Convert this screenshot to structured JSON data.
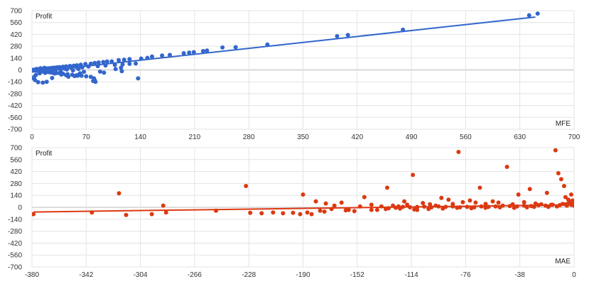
{
  "chart_data": [
    {
      "type": "scatter",
      "colors": {
        "points": "#3366cc",
        "trend": "#3366cc"
      },
      "xlabel": "MFE",
      "ylabel": "Profit",
      "xlim": [
        0,
        700
      ],
      "ylim": [
        -700,
        700
      ],
      "x_ticks": [
        "0",
        "70",
        "140",
        "210",
        "280",
        "350",
        "420",
        "490",
        "560",
        "630",
        "700"
      ],
      "y_ticks": [
        "700",
        "560",
        "420",
        "280",
        "140",
        "0",
        "-140",
        "-280",
        "-420",
        "-560",
        "-700"
      ],
      "grid": true,
      "trendline": [
        [
          0,
          -25
        ],
        [
          650,
          625
        ]
      ],
      "points": [
        [
          642,
          645
        ],
        [
          653,
          665
        ],
        [
          479,
          475
        ],
        [
          408,
          412
        ],
        [
          394,
          398
        ],
        [
          304,
          300
        ],
        [
          263,
          268
        ],
        [
          246,
          265
        ],
        [
          226,
          228
        ],
        [
          221,
          222
        ],
        [
          209,
          210
        ],
        [
          203,
          204
        ],
        [
          196,
          197
        ],
        [
          178,
          177
        ],
        [
          168,
          170
        ],
        [
          155,
          158
        ],
        [
          149,
          142
        ],
        [
          141,
          134
        ],
        [
          126,
          128
        ],
        [
          119,
          121
        ],
        [
          112,
          115
        ],
        [
          103,
          101
        ],
        [
          97,
          100
        ],
        [
          92,
          93
        ],
        [
          86,
          88
        ],
        [
          81,
          82
        ],
        [
          76,
          73
        ],
        [
          69,
          70
        ],
        [
          63,
          62
        ],
        [
          58,
          55
        ],
        [
          54,
          50
        ],
        [
          49,
          47
        ],
        [
          44,
          42
        ],
        [
          40,
          38
        ],
        [
          36,
          33
        ],
        [
          33,
          31
        ],
        [
          30,
          27
        ],
        [
          27,
          25
        ],
        [
          24,
          22
        ],
        [
          21,
          19
        ],
        [
          18,
          16
        ],
        [
          15,
          14
        ],
        [
          12,
          11
        ],
        [
          10,
          9
        ],
        [
          8,
          7
        ],
        [
          6,
          5
        ],
        [
          4,
          3
        ],
        [
          2,
          2
        ],
        [
          1,
          0
        ],
        [
          3,
          -5
        ],
        [
          5,
          -8
        ],
        [
          7,
          -10
        ],
        [
          9,
          -12
        ],
        [
          11,
          -15
        ],
        [
          13,
          -18
        ],
        [
          16,
          -20
        ],
        [
          19,
          -23
        ],
        [
          22,
          -26
        ],
        [
          25,
          -30
        ],
        [
          28,
          -33
        ],
        [
          32,
          -37
        ],
        [
          36,
          -40
        ],
        [
          40,
          -44
        ],
        [
          46,
          -50
        ],
        [
          52,
          -57
        ],
        [
          58,
          -62
        ],
        [
          64,
          -68
        ],
        [
          70,
          -75
        ],
        [
          76,
          -82
        ],
        [
          80,
          -100
        ],
        [
          81,
          -120
        ],
        [
          82,
          -140
        ],
        [
          79,
          -130
        ],
        [
          59,
          -68
        ],
        [
          55,
          -72
        ],
        [
          47,
          -80
        ],
        [
          26,
          -95
        ],
        [
          19,
          -140
        ],
        [
          14,
          -150
        ],
        [
          8,
          -145
        ],
        [
          4,
          -120
        ],
        [
          2,
          -100
        ],
        [
          3,
          -80
        ],
        [
          5,
          -60
        ],
        [
          10,
          -40
        ],
        [
          17,
          -35
        ],
        [
          29,
          -42
        ],
        [
          38,
          -55
        ],
        [
          44,
          -62
        ],
        [
          62,
          -40
        ],
        [
          67,
          -22
        ],
        [
          37,
          -12
        ],
        [
          23,
          -6
        ],
        [
          14,
          -3
        ],
        [
          9,
          2
        ],
        [
          6,
          12
        ],
        [
          11,
          20
        ],
        [
          16,
          25
        ],
        [
          20,
          18
        ],
        [
          31,
          8
        ],
        [
          42,
          15
        ],
        [
          50,
          28
        ],
        [
          57,
          35
        ],
        [
          65,
          30
        ],
        [
          73,
          40
        ],
        [
          85,
          45
        ],
        [
          95,
          52
        ],
        [
          107,
          60
        ],
        [
          117,
          65
        ],
        [
          126,
          72
        ],
        [
          134,
          75
        ],
        [
          137,
          -100
        ],
        [
          115,
          26
        ],
        [
          116,
          -15
        ],
        [
          108,
          10
        ],
        [
          93,
          -32
        ],
        [
          88,
          -20
        ],
        [
          28,
          9
        ],
        [
          35,
          18
        ],
        [
          45,
          5
        ],
        [
          53,
          -5
        ],
        [
          60,
          12
        ],
        [
          27,
          -12
        ],
        [
          13,
          5
        ],
        [
          17,
          -7
        ]
      ]
    },
    {
      "type": "scatter",
      "colors": {
        "points": "#dc3912",
        "trend": "#dc3912"
      },
      "xlabel": "MAE",
      "ylabel": "Profit",
      "xlim": [
        -380,
        0
      ],
      "ylim": [
        -700,
        700
      ],
      "x_ticks": [
        "-380",
        "-342",
        "-304",
        "-266",
        "-228",
        "-190",
        "-152",
        "-114",
        "-76",
        "-38",
        "0"
      ],
      "y_ticks": [
        "700",
        "560",
        "420",
        "280",
        "140",
        "0",
        "-140",
        "-280",
        "-420",
        "-560",
        "-700"
      ],
      "grid": true,
      "trendline": [
        [
          -379,
          -55
        ],
        [
          0,
          30
        ]
      ],
      "points": [
        [
          -379,
          -80
        ],
        [
          -338,
          -60
        ],
        [
          -319,
          165
        ],
        [
          -314,
          -90
        ],
        [
          -296,
          -80
        ],
        [
          -288,
          20
        ],
        [
          -286,
          -60
        ],
        [
          -251,
          -40
        ],
        [
          -230,
          250
        ],
        [
          -227,
          -65
        ],
        [
          -219,
          -70
        ],
        [
          -211,
          -60
        ],
        [
          -204,
          -70
        ],
        [
          -197,
          -65
        ],
        [
          -192,
          -80
        ],
        [
          -187,
          -60
        ],
        [
          -184,
          -80
        ],
        [
          -178,
          -40
        ],
        [
          -190,
          150
        ],
        [
          -181,
          70
        ],
        [
          -174,
          45
        ],
        [
          -168,
          20
        ],
        [
          -163,
          55
        ],
        [
          -158,
          -30
        ],
        [
          -154,
          -45
        ],
        [
          -150,
          10
        ],
        [
          -147,
          120
        ],
        [
          -142,
          30
        ],
        [
          -138,
          -30
        ],
        [
          -135,
          10
        ],
        [
          -131,
          230
        ],
        [
          -127,
          20
        ],
        [
          -123,
          10
        ],
        [
          -119,
          70
        ],
        [
          -117,
          30
        ],
        [
          -113,
          380
        ],
        [
          -110,
          -30
        ],
        [
          -106,
          50
        ],
        [
          -101,
          35
        ],
        [
          -97,
          20
        ],
        [
          -93,
          110
        ],
        [
          -88,
          90
        ],
        [
          -85,
          40
        ],
        [
          -81,
          650
        ],
        [
          -78,
          60
        ],
        [
          -73,
          80
        ],
        [
          -69,
          55
        ],
        [
          -66,
          230
        ],
        [
          -62,
          40
        ],
        [
          -57,
          70
        ],
        [
          -53,
          55
        ],
        [
          -47,
          475
        ],
        [
          -43,
          35
        ],
        [
          -39,
          150
        ],
        [
          -35,
          60
        ],
        [
          -31,
          215
        ],
        [
          -27,
          45
        ],
        [
          -23,
          35
        ],
        [
          -19,
          170
        ],
        [
          -16,
          30
        ],
        [
          -13,
          670
        ],
        [
          -11,
          400
        ],
        [
          -9,
          330
        ],
        [
          -7,
          250
        ],
        [
          -6,
          120
        ],
        [
          -4,
          90
        ],
        [
          -3,
          65
        ],
        [
          -2,
          150
        ],
        [
          -1,
          40
        ],
        [
          -1,
          80
        ],
        [
          0,
          20
        ],
        [
          -45,
          15
        ],
        [
          -50,
          20
        ],
        [
          -55,
          10
        ],
        [
          -60,
          5
        ],
        [
          -65,
          10
        ],
        [
          -70,
          0
        ],
        [
          -75,
          5
        ],
        [
          -80,
          0
        ],
        [
          -85,
          10
        ],
        [
          -90,
          5
        ],
        [
          -95,
          10
        ],
        [
          -100,
          0
        ],
        [
          -105,
          8
        ],
        [
          -110,
          4
        ],
        [
          -115,
          0
        ],
        [
          -120,
          5
        ],
        [
          -125,
          -5
        ],
        [
          -130,
          -10
        ],
        [
          -40,
          10
        ],
        [
          -35,
          20
        ],
        [
          -30,
          15
        ],
        [
          -25,
          25
        ],
        [
          -20,
          20
        ],
        [
          -15,
          30
        ],
        [
          -10,
          25
        ],
        [
          -8,
          40
        ],
        [
          -6,
          35
        ],
        [
          -4,
          45
        ],
        [
          -2,
          30
        ],
        [
          -5,
          20
        ],
        [
          -12,
          10
        ],
        [
          -18,
          5
        ],
        [
          -28,
          5
        ],
        [
          -33,
          0
        ],
        [
          -42,
          -5
        ],
        [
          -52,
          0
        ],
        [
          -62,
          -5
        ],
        [
          -72,
          -10
        ],
        [
          -82,
          -5
        ],
        [
          -92,
          -15
        ],
        [
          -102,
          -20
        ],
        [
          -112,
          -25
        ],
        [
          -122,
          -15
        ],
        [
          -132,
          -20
        ],
        [
          -142,
          -30
        ],
        [
          -160,
          -35
        ],
        [
          -170,
          -20
        ],
        [
          -175,
          -50
        ]
      ]
    }
  ]
}
